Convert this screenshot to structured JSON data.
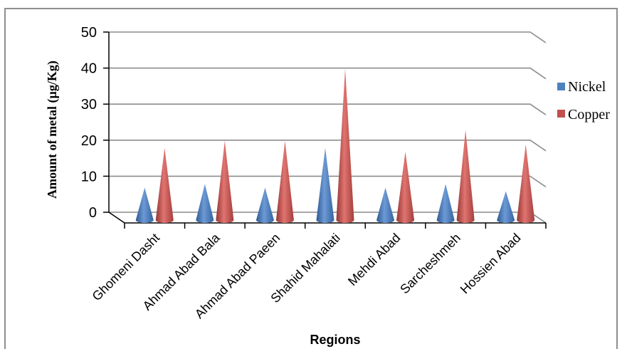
{
  "chart_data": {
    "type": "bar",
    "mark": "cone-3d",
    "categories": [
      "Ghomeni Dasht",
      "Ahmad Abad Bala",
      "Ahmad Abad Paeen",
      "Shahid Mahalati",
      "Mehdi Abad",
      "Sarcheshmeh",
      "Hossien Abad"
    ],
    "series": [
      {
        "name": "Nickel",
        "color": "#4f81bd",
        "values": [
          9,
          10,
          9,
          20,
          9,
          10,
          8
        ]
      },
      {
        "name": "Copper",
        "color": "#c0504d",
        "values": [
          20,
          22,
          22,
          42,
          19,
          25,
          21
        ]
      }
    ],
    "yticks": [
      "0",
      "10",
      "20",
      "30",
      "40",
      "50"
    ],
    "ylim": [
      0,
      50
    ],
    "ylabel": "Amount of metal (µg/Kg)",
    "xlabel": "Regions",
    "grid": true,
    "legend_position": "right"
  }
}
